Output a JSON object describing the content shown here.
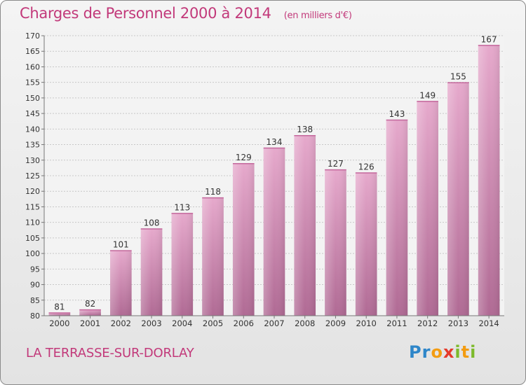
{
  "header": {
    "title": "Charges de Personnel 2000 à 2014",
    "unit": "(en milliers d'€)"
  },
  "footer": {
    "city": "LA TERRASSE-SUR-DORLAY",
    "logo_letters": [
      "P",
      "r",
      "o",
      "x",
      "i",
      "t",
      "i"
    ],
    "logo_colors": [
      "#2e86c9",
      "#2e86c9",
      "#f39c12",
      "#e5392b",
      "#7dba2b",
      "#f39c12",
      "#7dba2b"
    ]
  },
  "chart_data": {
    "type": "bar",
    "categories": [
      "2000",
      "2001",
      "2002",
      "2003",
      "2004",
      "2005",
      "2006",
      "2007",
      "2008",
      "2009",
      "2010",
      "2011",
      "2012",
      "2013",
      "2014"
    ],
    "values": [
      81,
      82,
      101,
      108,
      113,
      118,
      129,
      134,
      138,
      127,
      126,
      143,
      149,
      155,
      167
    ],
    "ylim": [
      80,
      170
    ],
    "yticks": [
      80,
      85,
      90,
      95,
      100,
      105,
      110,
      115,
      120,
      125,
      130,
      135,
      140,
      145,
      150,
      155,
      160,
      165,
      170
    ],
    "grid": true,
    "bar_color": "#d98bb6",
    "label_color": "#333333"
  }
}
